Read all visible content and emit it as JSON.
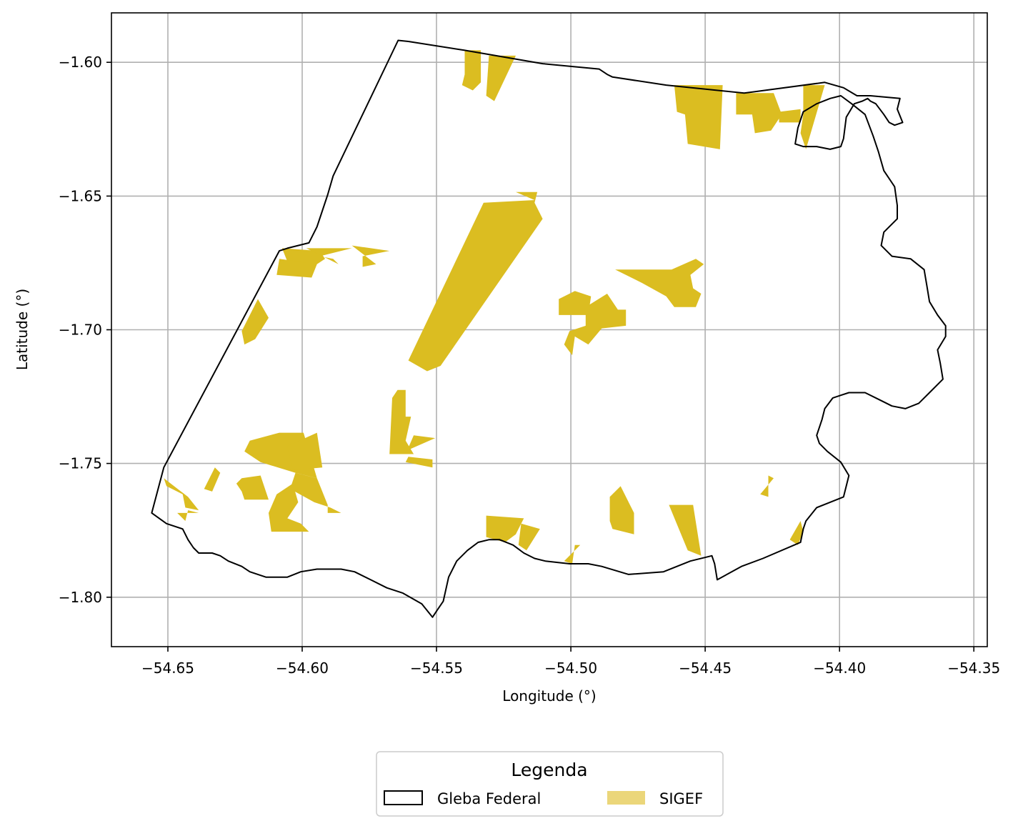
{
  "chart_data": {
    "type": "map",
    "xlabel": "Longitude (°)",
    "ylabel": "Latitude (°)",
    "xlim": [
      -54.671,
      -54.345
    ],
    "ylim": [
      -1.8185,
      -1.5815
    ],
    "grid": true,
    "x_ticks": [
      -54.65,
      -54.6,
      -54.55,
      -54.5,
      -54.45,
      -54.4,
      -54.35
    ],
    "x_tick_labels": [
      "−54.65",
      "−54.60",
      "−54.55",
      "−54.50",
      "−54.45",
      "−54.40",
      "−54.35"
    ],
    "y_ticks": [
      -1.6,
      -1.65,
      -1.7,
      -1.75,
      -1.8
    ],
    "y_tick_labels": [
      "−1.60",
      "−1.65",
      "−1.70",
      "−1.75",
      "−1.80"
    ],
    "legend": {
      "title": "Legenda",
      "placement": "bottom-center",
      "entries": [
        {
          "label": "Gleba Federal",
          "style": "outline",
          "color": "#000000"
        },
        {
          "label": "SIGEF",
          "style": "fill",
          "color": "#ebd67a"
        }
      ]
    },
    "colors": {
      "boundary": "#000000",
      "sigef_fill": "#dbbd21",
      "grid": "#b0b0b0"
    },
    "boundary": [
      [
        -54.656,
        -1.7685
      ],
      [
        -54.6515,
        -1.7515
      ],
      [
        -54.6085,
        -1.6705
      ],
      [
        -54.6055,
        -1.6695
      ],
      [
        -54.5975,
        -1.6675
      ],
      [
        -54.5945,
        -1.6615
      ],
      [
        -54.5925,
        -1.6555
      ],
      [
        -54.5905,
        -1.6495
      ],
      [
        -54.5885,
        -1.6425
      ],
      [
        -54.5643,
        -1.5918
      ],
      [
        -54.5605,
        -1.5922
      ],
      [
        -54.5395,
        -1.5955
      ],
      [
        -54.5105,
        -1.6005
      ],
      [
        -54.4895,
        -1.6025
      ],
      [
        -54.4865,
        -1.6045
      ],
      [
        -54.4845,
        -1.6055
      ],
      [
        -54.4645,
        -1.6085
      ],
      [
        -54.4355,
        -1.6115
      ],
      [
        -54.4055,
        -1.6075
      ],
      [
        -54.3985,
        -1.6095
      ],
      [
        -54.3935,
        -1.6125
      ],
      [
        -54.3885,
        -1.6125
      ],
      [
        -54.3775,
        -1.6135
      ],
      [
        -54.3785,
        -1.6175
      ],
      [
        -54.3765,
        -1.6225
      ],
      [
        -54.3795,
        -1.6235
      ],
      [
        -54.3815,
        -1.6225
      ],
      [
        -54.3835,
        -1.6195
      ],
      [
        -54.3865,
        -1.6155
      ],
      [
        -54.3885,
        -1.6145
      ],
      [
        -54.3895,
        -1.6135
      ],
      [
        -54.3915,
        -1.6145
      ],
      [
        -54.3945,
        -1.6155
      ],
      [
        -54.3975,
        -1.6205
      ],
      [
        -54.3985,
        -1.6285
      ],
      [
        -54.3995,
        -1.6315
      ],
      [
        -54.4035,
        -1.6325
      ],
      [
        -54.4085,
        -1.6315
      ],
      [
        -54.4135,
        -1.6315
      ],
      [
        -54.4165,
        -1.6305
      ],
      [
        -54.4155,
        -1.6245
      ],
      [
        -54.4135,
        -1.6185
      ],
      [
        -54.4085,
        -1.6155
      ],
      [
        -54.4035,
        -1.6135
      ],
      [
        -54.3995,
        -1.6125
      ],
      [
        -54.3955,
        -1.6155
      ],
      [
        -54.3905,
        -1.6195
      ],
      [
        -54.3875,
        -1.6275
      ],
      [
        -54.3855,
        -1.6335
      ],
      [
        -54.3835,
        -1.6405
      ],
      [
        -54.3795,
        -1.6465
      ],
      [
        -54.3785,
        -1.6535
      ],
      [
        -54.3785,
        -1.6585
      ],
      [
        -54.3835,
        -1.6635
      ],
      [
        -54.3845,
        -1.6685
      ],
      [
        -54.3805,
        -1.6725
      ],
      [
        -54.3735,
        -1.6735
      ],
      [
        -54.3685,
        -1.6775
      ],
      [
        -54.3675,
        -1.6835
      ],
      [
        -54.3665,
        -1.6895
      ],
      [
        -54.3635,
        -1.6945
      ],
      [
        -54.3605,
        -1.6985
      ],
      [
        -54.3605,
        -1.7025
      ],
      [
        -54.3635,
        -1.7075
      ],
      [
        -54.3625,
        -1.7125
      ],
      [
        -54.3615,
        -1.7185
      ],
      [
        -54.3665,
        -1.7235
      ],
      [
        -54.3705,
        -1.7275
      ],
      [
        -54.3755,
        -1.7295
      ],
      [
        -54.3805,
        -1.7285
      ],
      [
        -54.3845,
        -1.7265
      ],
      [
        -54.3905,
        -1.7235
      ],
      [
        -54.3965,
        -1.7235
      ],
      [
        -54.3995,
        -1.7245
      ],
      [
        -54.4025,
        -1.7255
      ],
      [
        -54.4055,
        -1.7295
      ],
      [
        -54.4065,
        -1.7335
      ],
      [
        -54.4085,
        -1.7395
      ],
      [
        -54.4075,
        -1.7425
      ],
      [
        -54.4045,
        -1.7455
      ],
      [
        -54.3995,
        -1.7495
      ],
      [
        -54.3965,
        -1.7545
      ],
      [
        -54.3985,
        -1.7625
      ],
      [
        -54.4035,
        -1.7645
      ],
      [
        -54.4085,
        -1.7665
      ],
      [
        -54.4125,
        -1.7715
      ],
      [
        -54.4135,
        -1.7745
      ],
      [
        -54.4145,
        -1.7795
      ],
      [
        -54.4285,
        -1.7855
      ],
      [
        -54.4365,
        -1.7885
      ],
      [
        -54.4455,
        -1.7935
      ],
      [
        -54.4465,
        -1.7875
      ],
      [
        -54.4475,
        -1.7845
      ],
      [
        -54.4555,
        -1.7865
      ],
      [
        -54.4655,
        -1.7905
      ],
      [
        -54.4785,
        -1.7915
      ],
      [
        -54.4885,
        -1.7885
      ],
      [
        -54.4935,
        -1.7875
      ],
      [
        -54.5005,
        -1.7875
      ],
      [
        -54.5095,
        -1.7865
      ],
      [
        -54.5135,
        -1.7855
      ],
      [
        -54.5175,
        -1.7835
      ],
      [
        -54.5215,
        -1.7805
      ],
      [
        -54.5265,
        -1.7785
      ],
      [
        -54.5305,
        -1.7785
      ],
      [
        -54.5345,
        -1.7795
      ],
      [
        -54.5385,
        -1.7825
      ],
      [
        -54.5425,
        -1.7865
      ],
      [
        -54.5455,
        -1.7925
      ],
      [
        -54.5475,
        -1.8015
      ],
      [
        -54.5495,
        -1.8045
      ],
      [
        -54.5515,
        -1.8075
      ],
      [
        -54.5555,
        -1.8025
      ],
      [
        -54.5625,
        -1.7985
      ],
      [
        -54.5685,
        -1.7965
      ],
      [
        -54.5745,
        -1.7935
      ],
      [
        -54.5805,
        -1.7905
      ],
      [
        -54.5855,
        -1.7895
      ],
      [
        -54.5945,
        -1.7895
      ],
      [
        -54.6005,
        -1.7905
      ],
      [
        -54.6055,
        -1.7925
      ],
      [
        -54.6135,
        -1.7925
      ],
      [
        -54.6195,
        -1.7905
      ],
      [
        -54.6225,
        -1.7885
      ],
      [
        -54.6275,
        -1.7865
      ],
      [
        -54.6305,
        -1.7845
      ],
      [
        -54.6335,
        -1.7835
      ],
      [
        -54.6385,
        -1.7835
      ],
      [
        -54.6405,
        -1.7815
      ],
      [
        -54.6425,
        -1.7785
      ],
      [
        -54.6445,
        -1.7745
      ],
      [
        -54.6505,
        -1.7725
      ],
      [
        -54.656,
        -1.7685
      ]
    ],
    "sigef_parcels": [
      [
        [
          -54.5395,
          -1.5955
        ],
        [
          -54.5335,
          -1.5955
        ],
        [
          -54.5335,
          -1.6075
        ],
        [
          -54.5365,
          -1.6105
        ],
        [
          -54.5405,
          -1.6085
        ],
        [
          -54.5395,
          -1.6045
        ]
      ],
      [
        [
          -54.5305,
          -1.5975
        ],
        [
          -54.5205,
          -1.5975
        ],
        [
          -54.5285,
          -1.6145
        ],
        [
          -54.5315,
          -1.6125
        ]
      ],
      [
        [
          -54.4615,
          -1.6085
        ],
        [
          -54.4435,
          -1.6085
        ],
        [
          -54.4445,
          -1.6325
        ],
        [
          -54.4565,
          -1.6305
        ],
        [
          -54.4575,
          -1.6195
        ],
        [
          -54.4605,
          -1.6185
        ]
      ],
      [
        [
          -54.4385,
          -1.6115
        ],
        [
          -54.4245,
          -1.6115
        ],
        [
          -54.4215,
          -1.6195
        ],
        [
          -54.4255,
          -1.6255
        ],
        [
          -54.4315,
          -1.6265
        ],
        [
          -54.4325,
          -1.6195
        ],
        [
          -54.4385,
          -1.6195
        ]
      ],
      [
        [
          -54.4225,
          -1.6185
        ],
        [
          -54.4145,
          -1.6175
        ],
        [
          -54.4145,
          -1.6225
        ],
        [
          -54.4225,
          -1.6225
        ]
      ],
      [
        [
          -54.4135,
          -1.6085
        ],
        [
          -54.4055,
          -1.6085
        ],
        [
          -54.4125,
          -1.6325
        ],
        [
          -54.4145,
          -1.6265
        ],
        [
          -54.4135,
          -1.6195
        ]
      ],
      [
        [
          -54.5205,
          -1.6485
        ],
        [
          -54.5125,
          -1.6485
        ],
        [
          -54.5135,
          -1.6525
        ],
        [
          -54.5105,
          -1.6585
        ],
        [
          -54.5485,
          -1.7135
        ],
        [
          -54.5535,
          -1.7155
        ],
        [
          -54.5605,
          -1.7115
        ],
        [
          -54.5325,
          -1.6525
        ],
        [
          -54.5135,
          -1.6515
        ]
      ],
      [
        [
          -54.6075,
          -1.6695
        ],
        [
          -54.5935,
          -1.6705
        ],
        [
          -54.5915,
          -1.6735
        ],
        [
          -54.5945,
          -1.6755
        ],
        [
          -54.5995,
          -1.6775
        ],
        [
          -54.6055,
          -1.6745
        ]
      ],
      [
        [
          -54.5985,
          -1.6695
        ],
        [
          -54.5815,
          -1.6695
        ],
        [
          -54.5935,
          -1.6725
        ],
        [
          -54.5885,
          -1.6735
        ],
        [
          -54.5865,
          -1.6755
        ]
      ],
      [
        [
          -54.5815,
          -1.6685
        ],
        [
          -54.5675,
          -1.6705
        ],
        [
          -54.5775,
          -1.6725
        ],
        [
          -54.5775,
          -1.6765
        ],
        [
          -54.5725,
          -1.6755
        ]
      ],
      [
        [
          -54.6085,
          -1.6735
        ],
        [
          -54.5945,
          -1.6755
        ],
        [
          -54.5965,
          -1.6805
        ],
        [
          -54.6095,
          -1.6795
        ]
      ],
      [
        [
          -54.6165,
          -1.6885
        ],
        [
          -54.6225,
          -1.7005
        ],
        [
          -54.6215,
          -1.7055
        ],
        [
          -54.6175,
          -1.7035
        ],
        [
          -54.6125,
          -1.6955
        ]
      ],
      [
        [
          -54.4945,
          -1.6915
        ],
        [
          -54.4865,
          -1.6865
        ],
        [
          -54.4825,
          -1.6925
        ],
        [
          -54.4795,
          -1.6925
        ],
        [
          -54.4795,
          -1.6985
        ],
        [
          -54.4885,
          -1.6995
        ],
        [
          -54.4935,
          -1.7055
        ],
        [
          -54.4985,
          -1.7025
        ],
        [
          -54.4995,
          -1.7095
        ],
        [
          -54.5025,
          -1.7055
        ],
        [
          -54.5005,
          -1.7005
        ],
        [
          -54.4945,
          -1.6985
        ]
      ],
      [
        [
          -54.4985,
          -1.6855
        ],
        [
          -54.5045,
          -1.6885
        ],
        [
          -54.5045,
          -1.6945
        ],
        [
          -54.4935,
          -1.6945
        ],
        [
          -54.4925,
          -1.6875
        ]
      ],
      [
        [
          -54.4835,
          -1.6775
        ],
        [
          -54.4625,
          -1.6775
        ],
        [
          -54.4535,
          -1.6735
        ],
        [
          -54.4505,
          -1.6755
        ],
        [
          -54.4555,
          -1.6795
        ],
        [
          -54.4545,
          -1.6845
        ],
        [
          -54.4515,
          -1.6865
        ],
        [
          -54.4535,
          -1.6915
        ],
        [
          -54.4515,
          -1.6915
        ],
        [
          -54.4615,
          -1.6915
        ],
        [
          -54.4645,
          -1.6875
        ],
        [
          -54.4735,
          -1.6825
        ]
      ],
      [
        [
          -54.5645,
          -1.7225
        ],
        [
          -54.5615,
          -1.7225
        ],
        [
          -54.5615,
          -1.7325
        ],
        [
          -54.5595,
          -1.7325
        ],
        [
          -54.5615,
          -1.7415
        ],
        [
          -54.5585,
          -1.7465
        ],
        [
          -54.5675,
          -1.7465
        ],
        [
          -54.5665,
          -1.7255
        ]
      ],
      [
        [
          -54.5585,
          -1.7395
        ],
        [
          -54.5505,
          -1.7405
        ],
        [
          -54.5595,
          -1.7445
        ],
        [
          -54.5615,
          -1.7465
        ]
      ],
      [
        [
          -54.5605,
          -1.7475
        ],
        [
          -54.5515,
          -1.7485
        ],
        [
          -54.5515,
          -1.7515
        ],
        [
          -54.5615,
          -1.7495
        ]
      ],
      [
        [
          -54.6085,
          -1.7385
        ],
        [
          -54.5995,
          -1.7385
        ],
        [
          -54.5945,
          -1.7555
        ],
        [
          -54.6025,
          -1.7535
        ],
        [
          -54.6155,
          -1.7495
        ],
        [
          -54.6215,
          -1.7455
        ],
        [
          -54.6195,
          -1.7415
        ]
      ],
      [
        [
          -54.6055,
          -1.7435
        ],
        [
          -54.5945,
          -1.7385
        ],
        [
          -54.5925,
          -1.7515
        ],
        [
          -54.6035,
          -1.7525
        ]
      ],
      [
        [
          -54.6025,
          -1.7535
        ],
        [
          -54.5945,
          -1.7555
        ],
        [
          -54.5905,
          -1.7655
        ],
        [
          -54.5905,
          -1.7685
        ],
        [
          -54.5855,
          -1.7685
        ],
        [
          -54.5895,
          -1.7665
        ],
        [
          -54.5955,
          -1.7645
        ],
        [
          -54.6045,
          -1.7595
        ]
      ],
      [
        [
          -54.6155,
          -1.7545
        ],
        [
          -54.6225,
          -1.7555
        ],
        [
          -54.6245,
          -1.7575
        ],
        [
          -54.6225,
          -1.7605
        ],
        [
          -54.6215,
          -1.7635
        ],
        [
          -54.6125,
          -1.7635
        ]
      ],
      [
        [
          -54.6095,
          -1.7615
        ],
        [
          -54.6035,
          -1.7575
        ],
        [
          -54.6015,
          -1.7645
        ],
        [
          -54.6055,
          -1.7705
        ],
        [
          -54.6005,
          -1.7725
        ],
        [
          -54.5975,
          -1.7755
        ],
        [
          -54.6115,
          -1.7755
        ],
        [
          -54.6125,
          -1.7685
        ]
      ],
      [
        [
          -54.6505,
          -1.7585
        ],
        [
          -54.6445,
          -1.7615
        ],
        [
          -54.6435,
          -1.7665
        ],
        [
          -54.6385,
          -1.7675
        ],
        [
          -54.6425,
          -1.7625
        ],
        [
          -54.6515,
          -1.7555
        ]
      ],
      [
        [
          -54.6325,
          -1.7515
        ],
        [
          -54.6305,
          -1.7535
        ],
        [
          -54.6335,
          -1.7605
        ],
        [
          -54.6365,
          -1.7595
        ]
      ],
      [
        [
          -54.6465,
          -1.7685
        ],
        [
          -54.6435,
          -1.7715
        ],
        [
          -54.6425,
          -1.7675
        ],
        [
          -54.6385,
          -1.7685
        ]
      ],
      [
        [
          -54.4855,
          -1.7625
        ],
        [
          -54.4815,
          -1.7585
        ],
        [
          -54.4765,
          -1.7685
        ],
        [
          -54.4765,
          -1.7765
        ],
        [
          -54.4845,
          -1.7745
        ],
        [
          -54.4855,
          -1.7715
        ]
      ],
      [
        [
          -54.4635,
          -1.7655
        ],
        [
          -54.4545,
          -1.7655
        ],
        [
          -54.4515,
          -1.7845
        ],
        [
          -54.4565,
          -1.7825
        ]
      ],
      [
        [
          -54.5315,
          -1.7695
        ],
        [
          -54.5175,
          -1.7705
        ],
        [
          -54.5205,
          -1.7765
        ],
        [
          -54.5245,
          -1.7795
        ],
        [
          -54.5315,
          -1.7775
        ]
      ],
      [
        [
          -54.5185,
          -1.7725
        ],
        [
          -54.5115,
          -1.7745
        ],
        [
          -54.5165,
          -1.7825
        ],
        [
          -54.5195,
          -1.7805
        ]
      ],
      [
        [
          -54.4985,
          -1.7805
        ],
        [
          -54.4965,
          -1.7805
        ],
        [
          -54.5025,
          -1.7865
        ],
        [
          -54.4995,
          -1.7875
        ]
      ],
      [
        [
          -54.4265,
          -1.7545
        ],
        [
          -54.4245,
          -1.7555
        ],
        [
          -54.4295,
          -1.7615
        ],
        [
          -54.4265,
          -1.7625
        ]
      ],
      [
        [
          -54.4145,
          -1.7715
        ],
        [
          -54.4135,
          -1.7755
        ],
        [
          -54.4155,
          -1.7805
        ],
        [
          -54.4185,
          -1.7785
        ]
      ]
    ]
  }
}
